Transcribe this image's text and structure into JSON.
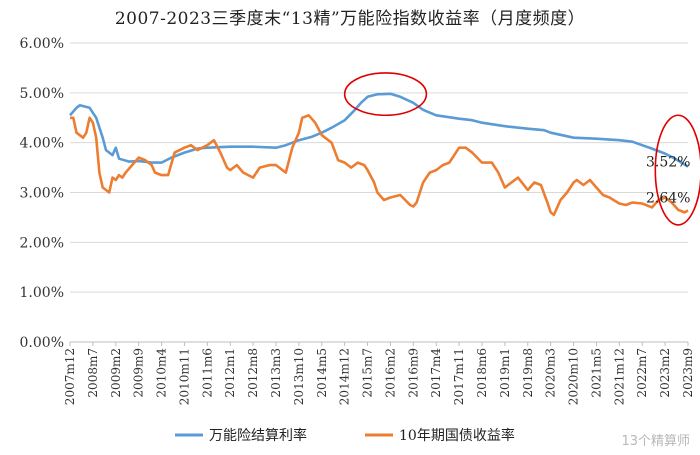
{
  "page": {
    "title": "2007-2023三季度末“13精”万能险指数收益率（月度频度）"
  },
  "watermark": {
    "text": "13个精算师"
  },
  "chart_data": {
    "type": "line",
    "title": "2007-2023三季度末“13精”万能险指数收益率（月度频度）",
    "xlabel": "",
    "ylabel": "",
    "ylim": [
      0,
      6
    ],
    "y_ticks": [
      "0.00%",
      "1.00%",
      "2.00%",
      "3.00%",
      "4.00%",
      "5.00%",
      "6.00%"
    ],
    "x_range": [
      "2007m12",
      "2023m9"
    ],
    "x_ticks": [
      "2007m12",
      "2008m7",
      "2009m2",
      "2009m9",
      "2010m4",
      "2010m11",
      "2011m6",
      "2012m1",
      "2012m8",
      "2013m3",
      "2013m10",
      "2014m5",
      "2014m12",
      "2015m7",
      "2016m2",
      "2016m9",
      "2017m4",
      "2017m11",
      "2018m6",
      "2019m1",
      "2019m8",
      "2020m3",
      "2020m10",
      "2021m5",
      "2021m12",
      "2022m7",
      "2023m2",
      "2023m9"
    ],
    "grid": true,
    "legend_position": "bottom",
    "series": [
      {
        "name": "万能险结算利率",
        "color": "#5b9bd5",
        "points": [
          [
            "2007m12",
            4.55
          ],
          [
            "2008m2",
            4.7
          ],
          [
            "2008m3",
            4.75
          ],
          [
            "2008m6",
            4.7
          ],
          [
            "2008m8",
            4.5
          ],
          [
            "2008m10",
            4.1
          ],
          [
            "2008m11",
            3.85
          ],
          [
            "2009m1",
            3.75
          ],
          [
            "2009m2",
            3.9
          ],
          [
            "2009m3",
            3.68
          ],
          [
            "2009m6",
            3.62
          ],
          [
            "2009m9",
            3.63
          ],
          [
            "2010m1",
            3.6
          ],
          [
            "2010m4",
            3.6
          ],
          [
            "2010m7",
            3.7
          ],
          [
            "2010m11",
            3.8
          ],
          [
            "2011m3",
            3.88
          ],
          [
            "2011m6",
            3.9
          ],
          [
            "2012m1",
            3.92
          ],
          [
            "2012m8",
            3.92
          ],
          [
            "2013m3",
            3.9
          ],
          [
            "2013m6",
            3.95
          ],
          [
            "2013m10",
            4.05
          ],
          [
            "2014m2",
            4.12
          ],
          [
            "2014m5",
            4.2
          ],
          [
            "2014m8",
            4.3
          ],
          [
            "2014m12",
            4.45
          ],
          [
            "2015m3",
            4.65
          ],
          [
            "2015m5",
            4.8
          ],
          [
            "2015m7",
            4.92
          ],
          [
            "2015m10",
            4.97
          ],
          [
            "2016m2",
            4.98
          ],
          [
            "2016m5",
            4.92
          ],
          [
            "2016m9",
            4.8
          ],
          [
            "2016m12",
            4.66
          ],
          [
            "2017m4",
            4.55
          ],
          [
            "2017m11",
            4.48
          ],
          [
            "2018m3",
            4.45
          ],
          [
            "2018m6",
            4.4
          ],
          [
            "2018m11",
            4.35
          ],
          [
            "2019m1",
            4.33
          ],
          [
            "2019m8",
            4.28
          ],
          [
            "2020m1",
            4.25
          ],
          [
            "2020m3",
            4.2
          ],
          [
            "2020m10",
            4.1
          ],
          [
            "2021m5",
            4.08
          ],
          [
            "2021m12",
            4.05
          ],
          [
            "2022m4",
            4.02
          ],
          [
            "2022m7",
            3.95
          ],
          [
            "2022m10",
            3.88
          ],
          [
            "2023m2",
            3.78
          ],
          [
            "2023m5",
            3.68
          ],
          [
            "2023m9",
            3.52
          ]
        ]
      },
      {
        "name": "10年期国债收益率",
        "color": "#ed7d31",
        "points": [
          [
            "2007m12",
            4.5
          ],
          [
            "2008m1",
            4.5
          ],
          [
            "2008m2",
            4.2
          ],
          [
            "2008m3",
            4.15
          ],
          [
            "2008m4",
            4.1
          ],
          [
            "2008m5",
            4.2
          ],
          [
            "2008m6",
            4.5
          ],
          [
            "2008m7",
            4.4
          ],
          [
            "2008m8",
            4.1
          ],
          [
            "2008m9",
            3.4
          ],
          [
            "2008m10",
            3.1
          ],
          [
            "2008m11",
            3.05
          ],
          [
            "2008m12",
            3.0
          ],
          [
            "2009m1",
            3.3
          ],
          [
            "2009m2",
            3.25
          ],
          [
            "2009m3",
            3.35
          ],
          [
            "2009m4",
            3.3
          ],
          [
            "2009m5",
            3.4
          ],
          [
            "2009m7",
            3.55
          ],
          [
            "2009m9",
            3.7
          ],
          [
            "2009m11",
            3.65
          ],
          [
            "2010m1",
            3.55
          ],
          [
            "2010m2",
            3.4
          ],
          [
            "2010m4",
            3.35
          ],
          [
            "2010m6",
            3.35
          ],
          [
            "2010m8",
            3.8
          ],
          [
            "2010m11",
            3.9
          ],
          [
            "2011m1",
            3.95
          ],
          [
            "2011m3",
            3.85
          ],
          [
            "2011m6",
            3.95
          ],
          [
            "2011m8",
            4.05
          ],
          [
            "2011m10",
            3.8
          ],
          [
            "2011m12",
            3.5
          ],
          [
            "2012m1",
            3.45
          ],
          [
            "2012m3",
            3.55
          ],
          [
            "2012m5",
            3.4
          ],
          [
            "2012m8",
            3.3
          ],
          [
            "2012m10",
            3.5
          ],
          [
            "2013m1",
            3.55
          ],
          [
            "2013m3",
            3.55
          ],
          [
            "2013m6",
            3.4
          ],
          [
            "2013m8",
            3.9
          ],
          [
            "2013m10",
            4.2
          ],
          [
            "2013m11",
            4.5
          ],
          [
            "2014m1",
            4.55
          ],
          [
            "2014m3",
            4.4
          ],
          [
            "2014m5",
            4.15
          ],
          [
            "2014m8",
            4.0
          ],
          [
            "2014m10",
            3.65
          ],
          [
            "2014m12",
            3.6
          ],
          [
            "2015m2",
            3.5
          ],
          [
            "2015m4",
            3.6
          ],
          [
            "2015m6",
            3.55
          ],
          [
            "2015m7",
            3.45
          ],
          [
            "2015m9",
            3.2
          ],
          [
            "2015m10",
            3.0
          ],
          [
            "2015m12",
            2.85
          ],
          [
            "2016m2",
            2.9
          ],
          [
            "2016m5",
            2.95
          ],
          [
            "2016m8",
            2.75
          ],
          [
            "2016m9",
            2.72
          ],
          [
            "2016m10",
            2.8
          ],
          [
            "2016m12",
            3.2
          ],
          [
            "2017m2",
            3.4
          ],
          [
            "2017m4",
            3.45
          ],
          [
            "2017m6",
            3.55
          ],
          [
            "2017m8",
            3.6
          ],
          [
            "2017m11",
            3.9
          ],
          [
            "2018m1",
            3.9
          ],
          [
            "2018m3",
            3.8
          ],
          [
            "2018m6",
            3.6
          ],
          [
            "2018m9",
            3.6
          ],
          [
            "2018m11",
            3.4
          ],
          [
            "2019m1",
            3.1
          ],
          [
            "2019m3",
            3.2
          ],
          [
            "2019m5",
            3.3
          ],
          [
            "2019m8",
            3.05
          ],
          [
            "2019m10",
            3.2
          ],
          [
            "2019m12",
            3.15
          ],
          [
            "2020m2",
            2.8
          ],
          [
            "2020m3",
            2.6
          ],
          [
            "2020m4",
            2.55
          ],
          [
            "2020m6",
            2.85
          ],
          [
            "2020m8",
            3.0
          ],
          [
            "2020m10",
            3.2
          ],
          [
            "2020m11",
            3.25
          ],
          [
            "2021m1",
            3.15
          ],
          [
            "2021m3",
            3.25
          ],
          [
            "2021m5",
            3.1
          ],
          [
            "2021m7",
            2.95
          ],
          [
            "2021m9",
            2.9
          ],
          [
            "2021m12",
            2.78
          ],
          [
            "2022m2",
            2.75
          ],
          [
            "2022m4",
            2.8
          ],
          [
            "2022m7",
            2.78
          ],
          [
            "2022m10",
            2.7
          ],
          [
            "2022m12",
            2.85
          ],
          [
            "2023m2",
            2.9
          ],
          [
            "2023m4",
            2.8
          ],
          [
            "2023m6",
            2.65
          ],
          [
            "2023m8",
            2.6
          ],
          [
            "2023m9",
            2.64
          ]
        ]
      }
    ],
    "annotations": [
      {
        "text": "3.52%",
        "series": "万能险结算利率",
        "x": "2023m9",
        "y": 3.52
      },
      {
        "text": "2.64%",
        "series": "10年期国债收益率",
        "x": "2023m9",
        "y": 2.64
      }
    ],
    "highlights": [
      {
        "shape": "ellipse",
        "color": "#e00000",
        "x_range": [
          "2014m12",
          "2017m1"
        ],
        "y_range": [
          4.55,
          5.4
        ]
      },
      {
        "shape": "ellipse",
        "color": "#e00000",
        "x_range": [
          "2022m11",
          "2024m1"
        ],
        "y_range": [
          2.35,
          4.55
        ]
      }
    ]
  }
}
